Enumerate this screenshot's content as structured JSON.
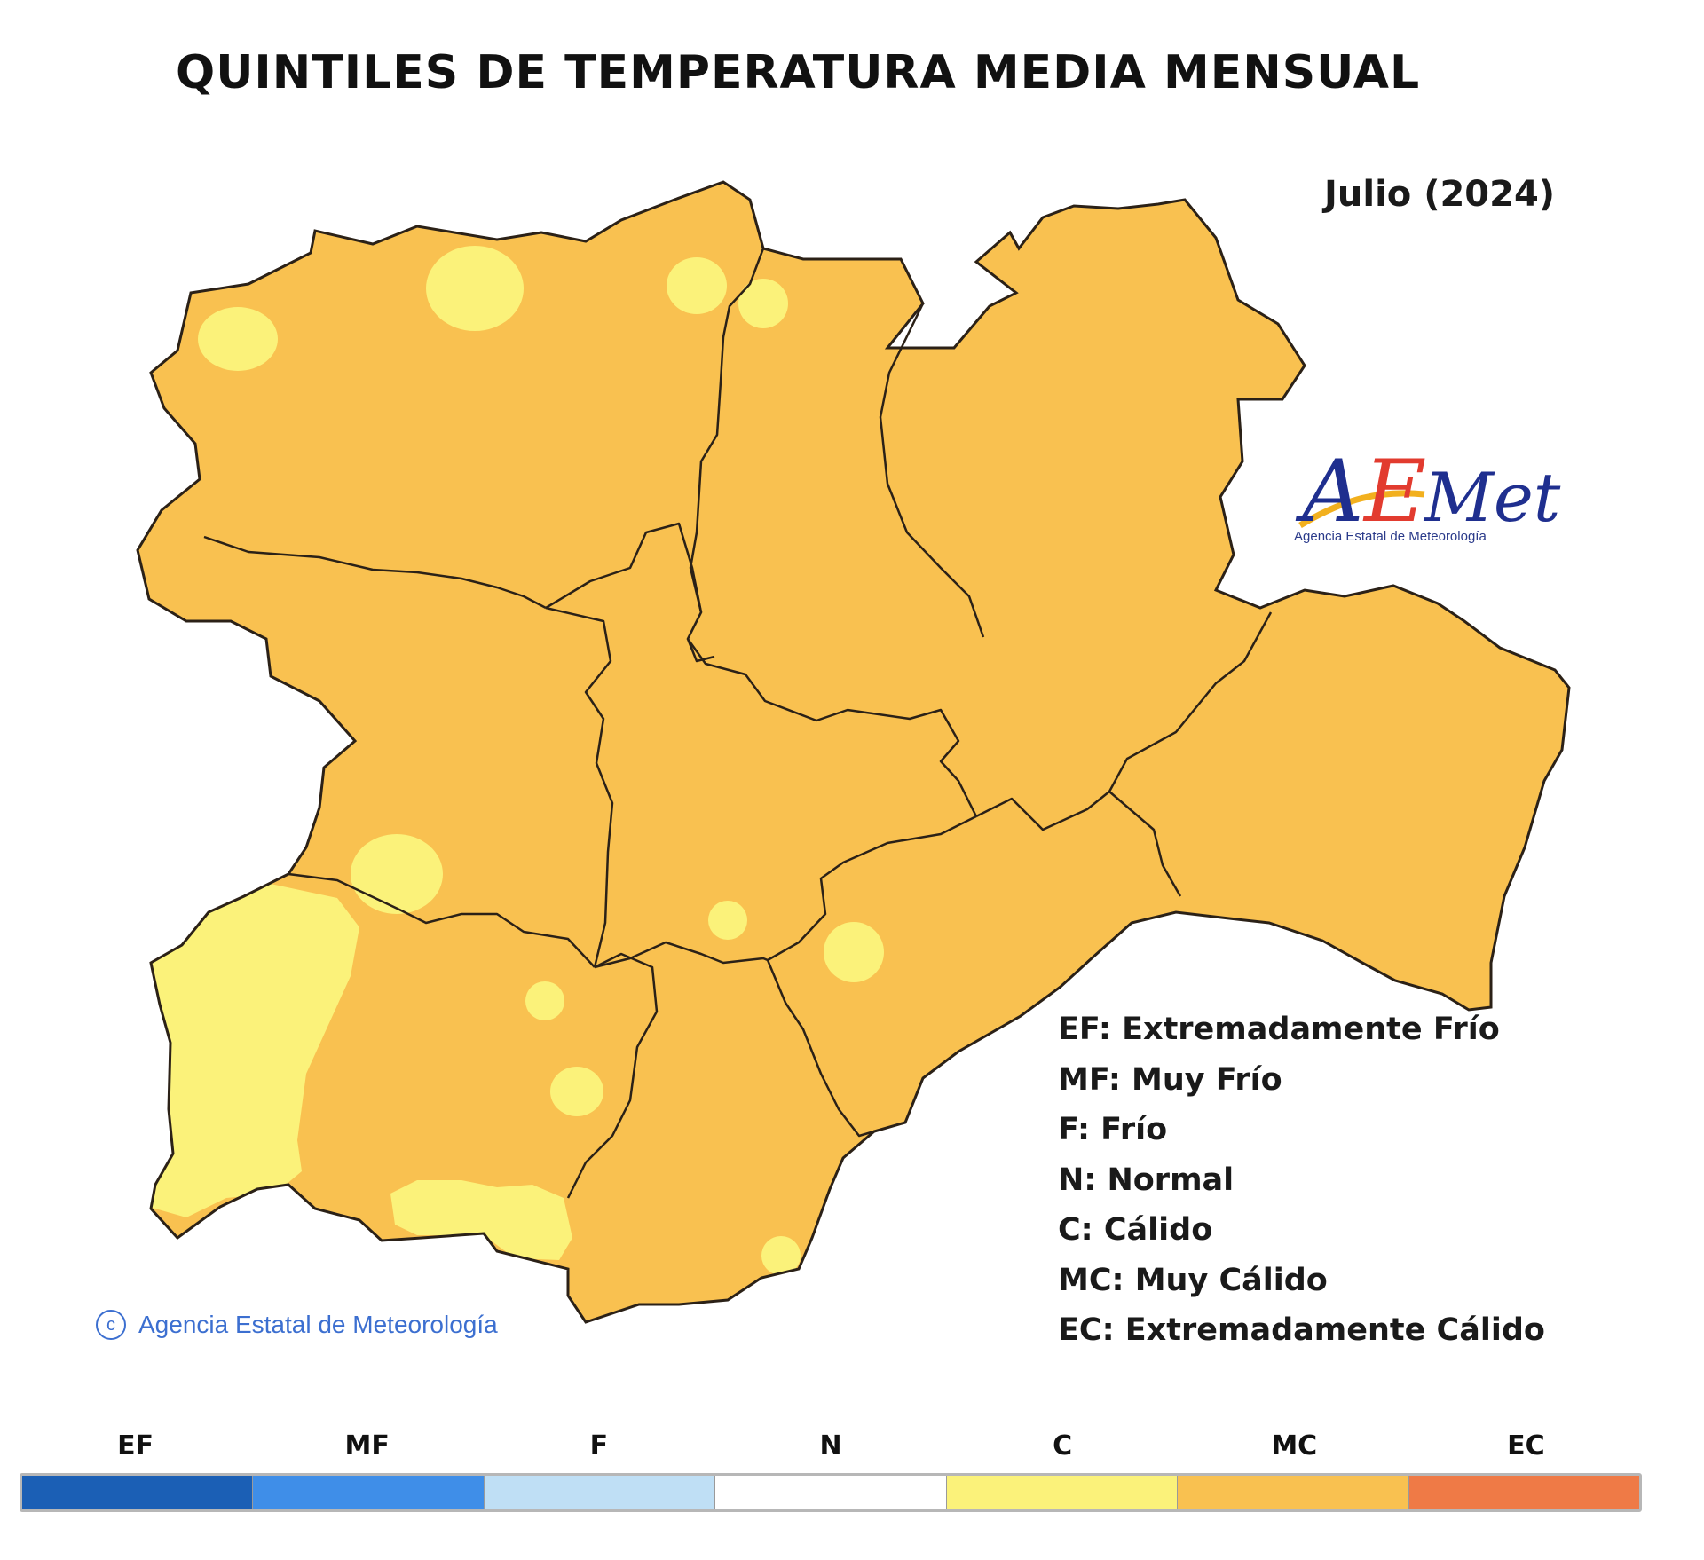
{
  "title": "QUINTILES DE TEMPERATURA MEDIA MENSUAL",
  "period": "Julio (2024)",
  "logo": {
    "name": "AEMet",
    "subtitle": "Agencia Estatal de Meteorología"
  },
  "copyright": "Agencia Estatal de Meteorología",
  "legend": [
    "EF: Extremadamente Frío",
    "MF: Muy Frío",
    "F: Frío",
    "N: Normal",
    "C: Cálido",
    "MC: Muy Cálido",
    "EC: Extremadamente Cálido"
  ],
  "scale": [
    {
      "code": "EF",
      "color": "#1b5fb5"
    },
    {
      "code": "MF",
      "color": "#3f8ee8"
    },
    {
      "code": "F",
      "color": "#bfdff5"
    },
    {
      "code": "N",
      "color": "#ffffff"
    },
    {
      "code": "C",
      "color": "#fbf27a"
    },
    {
      "code": "MC",
      "color": "#f9c150"
    },
    {
      "code": "EC",
      "color": "#ef7a46"
    }
  ],
  "map_colors": {
    "mc_fill": "#f9c150",
    "c_fill": "#fbf27a",
    "border": "#2b2117"
  }
}
